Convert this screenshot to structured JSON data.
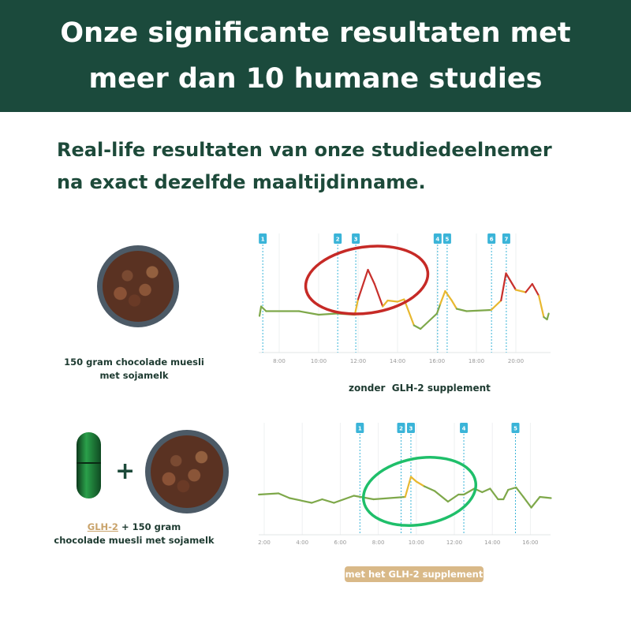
{
  "header": {
    "title_line1": "Onze significante resultaten met",
    "title_line2": "meer dan 10 humane studies"
  },
  "subtitle": {
    "line1": "Real-life resultaten van onze studiedeelnemer",
    "line2": "na exact dezelfde maaltijdinname."
  },
  "meal1": {
    "caption_line1": "150 gram chocolade muesli",
    "caption_line2": "met sojamelk"
  },
  "meal2": {
    "product": "GLH-2",
    "caption_line1_rest": "+ 150 gram",
    "caption_line2": "chocolade muesli met sojamelk",
    "plus": "+"
  },
  "colors": {
    "header_bg": "#1b4a3c",
    "text_green": "#1d4a3a",
    "badge_bg": "#d9b988",
    "line_low": "#7ea84a",
    "line_mid": "#e8b830",
    "line_high": "#c8302c",
    "marker": "#3ab4d8",
    "circle_without": "#c62a26",
    "circle_with": "#1fbf6a"
  },
  "chart_data": [
    {
      "type": "line",
      "label": "zonder  GLH-2 supplement",
      "x_ticks": [
        "8:00",
        "10:00",
        "12:00",
        "14:00",
        "16:00",
        "18:00",
        "20:00"
      ],
      "y_axis": "none (relative glucose level, unlabeled)",
      "grid": "vertical",
      "markers": [
        {
          "label": "1",
          "time": "7:10"
        },
        {
          "label": "2",
          "time": "10:58"
        },
        {
          "label": "3",
          "time": "11:53"
        },
        {
          "label": "4",
          "time": "16:02"
        },
        {
          "label": "5",
          "time": "16:31"
        },
        {
          "label": "6",
          "time": "18:46"
        },
        {
          "label": "7",
          "time": "19:31"
        }
      ],
      "annotation": "red circle",
      "series": [
        {
          "points": [
            [
              "7:00",
              31
            ],
            [
              "7:05",
              39
            ],
            [
              "7:20",
              35
            ],
            [
              "9:00",
              35
            ],
            [
              "10:00",
              32
            ],
            [
              "10:55",
              33
            ],
            [
              "11:50",
              32
            ],
            [
              "12:00",
              45
            ],
            [
              "12:30",
              70
            ],
            [
              "12:50",
              58
            ],
            [
              "13:15",
              39
            ],
            [
              "13:30",
              44
            ],
            [
              "14:00",
              43
            ],
            [
              "14:20",
              45
            ],
            [
              "14:50",
              23
            ],
            [
              "15:10",
              20
            ],
            [
              "16:00",
              33
            ],
            [
              "16:10",
              41
            ],
            [
              "16:25",
              52
            ],
            [
              "16:45",
              44
            ],
            [
              "17:00",
              37
            ],
            [
              "17:30",
              35
            ],
            [
              "18:45",
              36
            ],
            [
              "19:15",
              44
            ],
            [
              "19:30",
              67
            ],
            [
              "20:00",
              53
            ],
            [
              "20:30",
              51
            ],
            [
              "20:50",
              58
            ],
            [
              "21:10",
              48
            ],
            [
              "21:25",
              30
            ],
            [
              "21:35",
              28
            ],
            [
              "21:40",
              33
            ]
          ]
        }
      ]
    },
    {
      "type": "line",
      "label": "met het GLH-2 supplement",
      "x_ticks": [
        "2:00",
        "4:00",
        "6:00",
        "8:00",
        "10:00",
        "12:00",
        "14:00",
        "16:00"
      ],
      "y_axis": "none (relative glucose level, unlabeled)",
      "grid": "vertical",
      "markers": [
        {
          "label": "1",
          "time": "7:02"
        },
        {
          "label": "2",
          "time": "9:12"
        },
        {
          "label": "3",
          "time": "9:43"
        },
        {
          "label": "4",
          "time": "12:30"
        },
        {
          "label": "5",
          "time": "15:13"
        }
      ],
      "annotation": "green circle",
      "series": [
        {
          "points": [
            [
              "1:43",
              34
            ],
            [
              "2:45",
              35
            ],
            [
              "3:20",
              31
            ],
            [
              "4:30",
              27
            ],
            [
              "5:03",
              30
            ],
            [
              "5:40",
              27
            ],
            [
              "6:43",
              33
            ],
            [
              "7:45",
              30
            ],
            [
              "9:25",
              32
            ],
            [
              "9:43",
              49
            ],
            [
              "10:00",
              45
            ],
            [
              "10:25",
              41
            ],
            [
              "10:58",
              37
            ],
            [
              "11:40",
              28
            ],
            [
              "12:13",
              34
            ],
            [
              "12:30",
              34
            ],
            [
              "13:03",
              39
            ],
            [
              "13:28",
              36
            ],
            [
              "13:53",
              39
            ],
            [
              "14:18",
              30
            ],
            [
              "14:35",
              30
            ],
            [
              "14:50",
              38
            ],
            [
              "15:15",
              40
            ],
            [
              "15:38",
              32
            ],
            [
              "16:03",
              23
            ],
            [
              "16:30",
              32
            ],
            [
              "17:05",
              31
            ]
          ]
        }
      ]
    }
  ]
}
